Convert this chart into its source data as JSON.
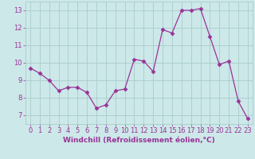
{
  "x": [
    0,
    1,
    2,
    3,
    4,
    5,
    6,
    7,
    8,
    9,
    10,
    11,
    12,
    13,
    14,
    15,
    16,
    17,
    18,
    19,
    20,
    21,
    22,
    23
  ],
  "y": [
    9.7,
    9.4,
    9.0,
    8.4,
    8.6,
    8.6,
    8.3,
    7.4,
    7.6,
    8.4,
    8.5,
    10.2,
    10.1,
    9.5,
    11.9,
    11.7,
    13.0,
    13.0,
    13.1,
    11.5,
    9.9,
    10.1,
    7.8,
    6.8
  ],
  "line_color": "#993399",
  "marker": "D",
  "marker_size": 2.5,
  "bg_color": "#cce8e8",
  "grid_color": "#aacccc",
  "xlabel": "Windchill (Refroidissement éolien,°C)",
  "ylim": [
    6.5,
    13.5
  ],
  "yticks": [
    7,
    8,
    9,
    10,
    11,
    12,
    13
  ],
  "xlim": [
    -0.5,
    23.5
  ],
  "xticks": [
    0,
    1,
    2,
    3,
    4,
    5,
    6,
    7,
    8,
    9,
    10,
    11,
    12,
    13,
    14,
    15,
    16,
    17,
    18,
    19,
    20,
    21,
    22,
    23
  ],
  "font_color": "#993399",
  "tick_font_size": 6,
  "xlabel_font_size": 6.5
}
